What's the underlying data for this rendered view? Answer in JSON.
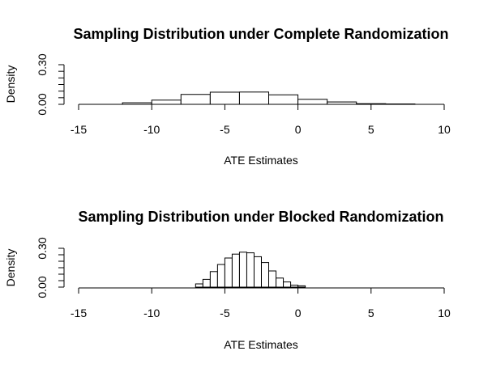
{
  "chart_data": [
    {
      "type": "bar",
      "title": "Sampling Distribution under Complete Randomization",
      "xlabel": "ATE Estimates",
      "ylabel": "Density",
      "xlim": [
        -15,
        10
      ],
      "ylim": [
        0,
        0.3
      ],
      "x_ticks": [
        -15,
        -10,
        -5,
        0,
        5,
        10
      ],
      "x_tick_labels": [
        "-15",
        "-10",
        "-5",
        "0",
        "5",
        "10"
      ],
      "y_ticks": [
        0,
        0.05,
        0.1,
        0.15,
        0.2,
        0.25,
        0.3
      ],
      "y_tick_labels": [
        "0.00",
        "",
        "",
        "",
        "",
        "",
        "0.30"
      ],
      "bin_edges": [
        -12,
        -10,
        -8,
        -6,
        -4,
        -2,
        0,
        2,
        4,
        6,
        8
      ],
      "values": [
        0.012,
        0.032,
        0.075,
        0.092,
        0.093,
        0.072,
        0.038,
        0.018,
        0.005,
        0.003
      ],
      "grid": false
    },
    {
      "type": "bar",
      "title": "Sampling Distribution under Blocked Randomization",
      "xlabel": "ATE Estimates",
      "ylabel": "Density",
      "xlim": [
        -15,
        10
      ],
      "ylim": [
        0,
        0.3
      ],
      "x_ticks": [
        -15,
        -10,
        -5,
        0,
        5,
        10
      ],
      "x_tick_labels": [
        "-15",
        "-10",
        "-5",
        "0",
        "5",
        "10"
      ],
      "y_ticks": [
        0,
        0.05,
        0.1,
        0.15,
        0.2,
        0.25,
        0.3
      ],
      "y_tick_labels": [
        "0.00",
        "",
        "",
        "",
        "",
        "",
        "0.30"
      ],
      "bin_edges": [
        -7,
        -6.5,
        -6,
        -5.5,
        -5,
        -4.5,
        -4,
        -3.5,
        -3,
        -2.5,
        -2,
        -1.5,
        -1,
        -0.5,
        0,
        0.5
      ],
      "values": [
        0.025,
        0.06,
        0.12,
        0.175,
        0.225,
        0.255,
        0.27,
        0.265,
        0.235,
        0.19,
        0.125,
        0.07,
        0.04,
        0.015,
        0.01
      ],
      "grid": false
    }
  ]
}
